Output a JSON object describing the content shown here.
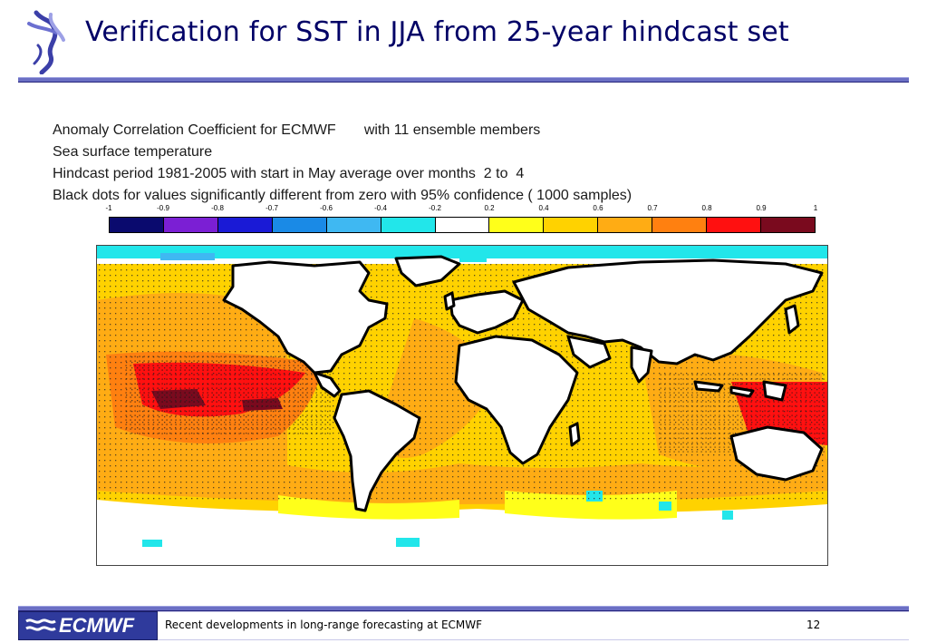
{
  "slide": {
    "title": "Verification for SST in JJA from 25-year hindcast set",
    "footer_text": "Recent developments in long-range forecasting at ECMWF",
    "page_number": "12",
    "footer_logo_text": "ECMWF",
    "colors": {
      "title": "#000066",
      "rule": "#6b6fc4",
      "logo_bg": "#2f3a9c"
    }
  },
  "figure": {
    "caption_lines": [
      "Anomaly Correlation Coefficient for ECMWF       with 11 ensemble members",
      "Sea surface temperature",
      "Hindcast period 1981-2005 with start in May average over months  2 to  4",
      "Black dots for values significantly different from zero with 95% confidence ( 1000 samples)"
    ],
    "colorbar": {
      "ticks": [
        "-1",
        "-0.9",
        "-0.8",
        "-0.7",
        "-0.6",
        "-0.4",
        "-0.2",
        "0.2",
        "0.4",
        "0.6",
        "0.7",
        "0.8",
        "0.9",
        "1"
      ],
      "colors": [
        "#0a0a6e",
        "#7b1fd4",
        "#1a1ad6",
        "#1a8ae6",
        "#3fb8f2",
        "#22e6ea",
        "#ffffff",
        "#ffff1a",
        "#ffd200",
        "#ffac14",
        "#ff8010",
        "#ff1010",
        "#7a0a1e"
      ]
    }
  },
  "icons": {
    "logo": "ecmwf-figure-logo-icon",
    "footer": "ecmwf-wave-logo-icon"
  }
}
